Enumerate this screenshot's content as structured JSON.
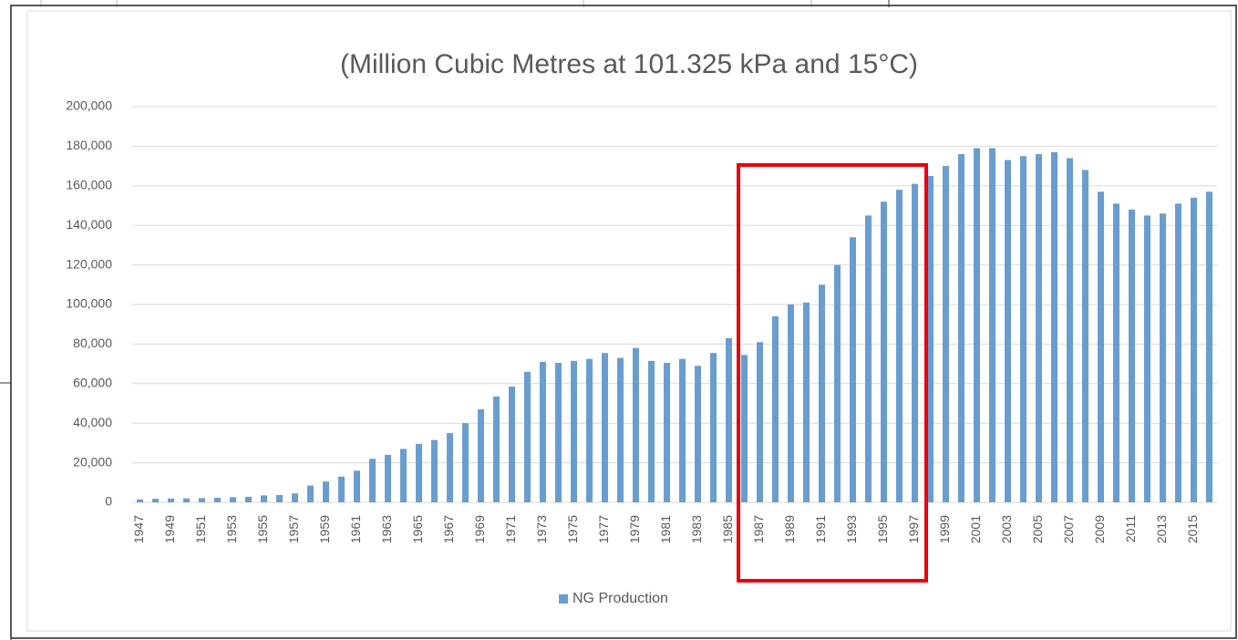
{
  "chart_data": {
    "type": "bar",
    "title": "(Million Cubic Metres at 101.325 kPa and 15°C)",
    "categories": [
      "1947",
      null,
      "1949",
      null,
      "1951",
      null,
      "1953",
      null,
      "1955",
      null,
      "1957",
      null,
      "1959",
      null,
      "1961",
      null,
      "1963",
      null,
      "1965",
      null,
      "1967",
      null,
      "1969",
      null,
      "1971",
      null,
      "1973",
      null,
      "1975",
      null,
      "1977",
      null,
      "1979",
      null,
      "1981",
      null,
      "1983",
      null,
      "1985",
      null,
      "1987",
      null,
      "1989",
      null,
      "1991",
      null,
      "1993",
      null,
      "1995",
      null,
      "1997",
      null,
      "1999",
      null,
      "2001",
      null,
      "2003",
      null,
      "2005",
      null,
      "2007",
      null,
      "2009",
      null,
      "2011",
      null,
      "2013",
      null,
      "2015",
      null
    ],
    "series": [
      {
        "name": "NG Production",
        "color": "#6a9dcf",
        "values": [
          1500,
          1800,
          1900,
          2000,
          2100,
          2300,
          2600,
          2800,
          3500,
          3700,
          4500,
          8500,
          10500,
          13000,
          16000,
          22000,
          24000,
          27000,
          29500,
          31500,
          35000,
          40000,
          47000,
          53500,
          58500,
          66000,
          71000,
          70500,
          71500,
          72500,
          75500,
          73000,
          78000,
          71500,
          70500,
          72500,
          69000,
          75500,
          83000,
          74500,
          81000,
          94000,
          100000,
          101000,
          110000,
          120000,
          134000,
          145000,
          152000,
          158000,
          161000,
          165000,
          170000,
          176000,
          179000,
          179000,
          173000,
          175000,
          176000,
          177000,
          174000,
          168000,
          157000,
          151000,
          148000,
          145000,
          146000,
          151000,
          154000,
          157000
        ]
      }
    ],
    "ylim": [
      0,
      200000
    ],
    "yticks": [
      0,
      {
        "value": 20000,
        "label": "20,000"
      },
      {
        "value": 40000,
        "label": "40,000"
      },
      {
        "value": 60000,
        "label": "60,000"
      },
      {
        "value": 80000,
        "label": "80,000"
      },
      {
        "value": 100000,
        "label": "100,000"
      },
      {
        "value": 120000,
        "label": "120,000"
      },
      {
        "value": 140000,
        "label": "140,000"
      },
      {
        "value": 160000,
        "label": "160,000"
      },
      {
        "value": 180000,
        "label": "180,000"
      },
      {
        "value": 200000,
        "label": "200,000"
      }
    ],
    "grid": true,
    "legend": "bottom"
  }
}
